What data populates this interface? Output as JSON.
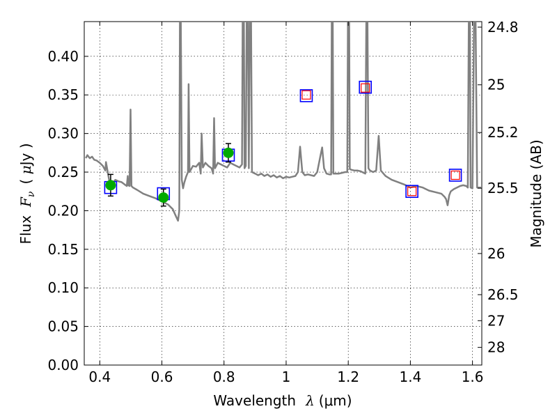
{
  "chart_data": {
    "type": "line",
    "title": "",
    "xlabel": "Wavelength  λ (μm)",
    "ylabel": "Flux  F_ν  ( μJy )",
    "ylabel_parts": {
      "prefix": "Flux",
      "symbol": "F",
      "subscript": "ν",
      "unit_open": "( ",
      "unit_mu": "μ",
      "unit_rest": "Jy )"
    },
    "xlabel_parts": {
      "prefix": "Wavelength",
      "symbol": "λ",
      "unit": "(μm)"
    },
    "y2label": "Magnitude (AB)",
    "xlim": [
      0.35,
      1.63
    ],
    "ylim": [
      0.0,
      0.445
    ],
    "grid": true,
    "x_ticks": [
      {
        "value": 0.4,
        "label": "0.4"
      },
      {
        "value": 0.6,
        "label": "0.6"
      },
      {
        "value": 0.8,
        "label": "0.8"
      },
      {
        "value": 1.0,
        "label": "1"
      },
      {
        "value": 1.2,
        "label": "1.2"
      },
      {
        "value": 1.4,
        "label": "1.4"
      },
      {
        "value": 1.6,
        "label": "1.6"
      }
    ],
    "y_ticks": [
      {
        "value": 0.0,
        "label": "0.00"
      },
      {
        "value": 0.05,
        "label": "0.05"
      },
      {
        "value": 0.1,
        "label": "0.10"
      },
      {
        "value": 0.15,
        "label": "0.15"
      },
      {
        "value": 0.2,
        "label": "0.20"
      },
      {
        "value": 0.25,
        "label": "0.25"
      },
      {
        "value": 0.3,
        "label": "0.30"
      },
      {
        "value": 0.35,
        "label": "0.35"
      },
      {
        "value": 0.4,
        "label": "0.40"
      }
    ],
    "y2_ticks": [
      {
        "flux": 0.4378,
        "label": "24.8"
      },
      {
        "flux": 0.3631,
        "label": "25"
      },
      {
        "flux": 0.3013,
        "label": "25.2"
      },
      {
        "flux": 0.2291,
        "label": "25.5"
      },
      {
        "flux": 0.1445,
        "label": "26"
      },
      {
        "flux": 0.0912,
        "label": "26.5"
      },
      {
        "flux": 0.0575,
        "label": "27"
      },
      {
        "flux": 0.0229,
        "label": "28"
      }
    ],
    "spectrum": {
      "color": "#808080",
      "points": [
        [
          0.355,
          0.268
        ],
        [
          0.36,
          0.272
        ],
        [
          0.368,
          0.268
        ],
        [
          0.375,
          0.27
        ],
        [
          0.382,
          0.266
        ],
        [
          0.39,
          0.265
        ],
        [
          0.4,
          0.262
        ],
        [
          0.41,
          0.258
        ],
        [
          0.418,
          0.252
        ],
        [
          0.42,
          0.263
        ],
        [
          0.43,
          0.24
        ],
        [
          0.44,
          0.235
        ],
        [
          0.45,
          0.24
        ],
        [
          0.46,
          0.238
        ],
        [
          0.47,
          0.237
        ],
        [
          0.48,
          0.234
        ],
        [
          0.487,
          0.232
        ],
        [
          0.49,
          0.245
        ],
        [
          0.492,
          0.233
        ],
        [
          0.496,
          0.232
        ],
        [
          0.499,
          0.331
        ],
        [
          0.502,
          0.232
        ],
        [
          0.507,
          0.23
        ],
        [
          0.52,
          0.227
        ],
        [
          0.54,
          0.222
        ],
        [
          0.56,
          0.219
        ],
        [
          0.58,
          0.216
        ],
        [
          0.6,
          0.212
        ],
        [
          0.62,
          0.208
        ],
        [
          0.635,
          0.202
        ],
        [
          0.645,
          0.193
        ],
        [
          0.652,
          0.187
        ],
        [
          0.656,
          0.2
        ],
        [
          0.658,
          0.445
        ],
        [
          0.661,
          0.445
        ],
        [
          0.664,
          0.24
        ],
        [
          0.668,
          0.229
        ],
        [
          0.672,
          0.236
        ],
        [
          0.678,
          0.244
        ],
        [
          0.684,
          0.25
        ],
        [
          0.686,
          0.364
        ],
        [
          0.689,
          0.25
        ],
        [
          0.7,
          0.258
        ],
        [
          0.71,
          0.257
        ],
        [
          0.72,
          0.262
        ],
        [
          0.725,
          0.248
        ],
        [
          0.728,
          0.3
        ],
        [
          0.732,
          0.256
        ],
        [
          0.74,
          0.262
        ],
        [
          0.75,
          0.258
        ],
        [
          0.76,
          0.255
        ],
        [
          0.765,
          0.248
        ],
        [
          0.768,
          0.32
        ],
        [
          0.771,
          0.255
        ],
        [
          0.78,
          0.262
        ],
        [
          0.79,
          0.26
        ],
        [
          0.8,
          0.258
        ],
        [
          0.81,
          0.256
        ],
        [
          0.82,
          0.262
        ],
        [
          0.83,
          0.26
        ],
        [
          0.84,
          0.258
        ],
        [
          0.85,
          0.256
        ],
        [
          0.858,
          0.26
        ],
        [
          0.86,
          0.445
        ],
        [
          0.864,
          0.445
        ],
        [
          0.866,
          0.255
        ],
        [
          0.87,
          0.258
        ],
        [
          0.873,
          0.445
        ],
        [
          0.877,
          0.445
        ],
        [
          0.88,
          0.255
        ],
        [
          0.883,
          0.445
        ],
        [
          0.887,
          0.445
        ],
        [
          0.89,
          0.25
        ],
        [
          0.9,
          0.248
        ],
        [
          0.91,
          0.246
        ],
        [
          0.92,
          0.248
        ],
        [
          0.93,
          0.245
        ],
        [
          0.94,
          0.247
        ],
        [
          0.95,
          0.244
        ],
        [
          0.96,
          0.246
        ],
        [
          0.97,
          0.243
        ],
        [
          0.98,
          0.245
        ],
        [
          0.99,
          0.242
        ],
        [
          1.0,
          0.244
        ],
        [
          1.01,
          0.243
        ],
        [
          1.02,
          0.244
        ],
        [
          1.03,
          0.245
        ],
        [
          1.038,
          0.25
        ],
        [
          1.045,
          0.283
        ],
        [
          1.052,
          0.25
        ],
        [
          1.06,
          0.246
        ],
        [
          1.07,
          0.247
        ],
        [
          1.08,
          0.246
        ],
        [
          1.09,
          0.245
        ],
        [
          1.1,
          0.25
        ],
        [
          1.11,
          0.27
        ],
        [
          1.116,
          0.282
        ],
        [
          1.122,
          0.255
        ],
        [
          1.13,
          0.248
        ],
        [
          1.14,
          0.247
        ],
        [
          1.145,
          0.247
        ],
        [
          1.147,
          0.445
        ],
        [
          1.15,
          0.445
        ],
        [
          1.152,
          0.248
        ],
        [
          1.16,
          0.248
        ],
        [
          1.17,
          0.248
        ],
        [
          1.18,
          0.249
        ],
        [
          1.19,
          0.25
        ],
        [
          1.197,
          0.25
        ],
        [
          1.199,
          0.445
        ],
        [
          1.203,
          0.445
        ],
        [
          1.205,
          0.254
        ],
        [
          1.21,
          0.253
        ],
        [
          1.22,
          0.252
        ],
        [
          1.23,
          0.252
        ],
        [
          1.24,
          0.251
        ],
        [
          1.25,
          0.249
        ],
        [
          1.255,
          0.248
        ],
        [
          1.258,
          0.445
        ],
        [
          1.262,
          0.445
        ],
        [
          1.265,
          0.255
        ],
        [
          1.27,
          0.252
        ],
        [
          1.28,
          0.25
        ],
        [
          1.29,
          0.252
        ],
        [
          1.298,
          0.297
        ],
        [
          1.305,
          0.252
        ],
        [
          1.32,
          0.245
        ],
        [
          1.34,
          0.24
        ],
        [
          1.36,
          0.237
        ],
        [
          1.38,
          0.234
        ],
        [
          1.4,
          0.23
        ],
        [
          1.42,
          0.232
        ],
        [
          1.44,
          0.23
        ],
        [
          1.46,
          0.226
        ],
        [
          1.48,
          0.224
        ],
        [
          1.5,
          0.222
        ],
        [
          1.51,
          0.218
        ],
        [
          1.515,
          0.215
        ],
        [
          1.52,
          0.207
        ],
        [
          1.525,
          0.22
        ],
        [
          1.53,
          0.225
        ],
        [
          1.54,
          0.228
        ],
        [
          1.55,
          0.23
        ],
        [
          1.56,
          0.232
        ],
        [
          1.57,
          0.233
        ],
        [
          1.58,
          0.232
        ],
        [
          1.585,
          0.23
        ],
        [
          1.588,
          0.445
        ],
        [
          1.592,
          0.445
        ],
        [
          1.594,
          0.23
        ],
        [
          1.6,
          0.229
        ],
        [
          1.605,
          0.445
        ],
        [
          1.61,
          0.445
        ],
        [
          1.615,
          0.23
        ],
        [
          1.63,
          0.23
        ]
      ]
    },
    "photometry_filled": {
      "color": "#00aa00",
      "points": [
        {
          "x": 0.435,
          "y": 0.233,
          "err": 0.014
        },
        {
          "x": 0.605,
          "y": 0.217,
          "err": 0.011
        },
        {
          "x": 0.814,
          "y": 0.275,
          "err": 0.012
        }
      ]
    },
    "model_squares": {
      "color": "#0000ff",
      "points": [
        {
          "x": 0.435,
          "y": 0.23
        },
        {
          "x": 0.605,
          "y": 0.222
        },
        {
          "x": 0.814,
          "y": 0.272
        },
        {
          "x": 1.065,
          "y": 0.349
        },
        {
          "x": 1.255,
          "y": 0.36
        },
        {
          "x": 1.405,
          "y": 0.225
        },
        {
          "x": 1.545,
          "y": 0.246
        }
      ]
    },
    "open_red_squares": {
      "color": "#ff0000",
      "points": [
        {
          "x": 1.065,
          "y": 0.35
        },
        {
          "x": 1.255,
          "y": 0.359
        },
        {
          "x": 1.405,
          "y": 0.225
        },
        {
          "x": 1.545,
          "y": 0.246
        }
      ]
    }
  }
}
